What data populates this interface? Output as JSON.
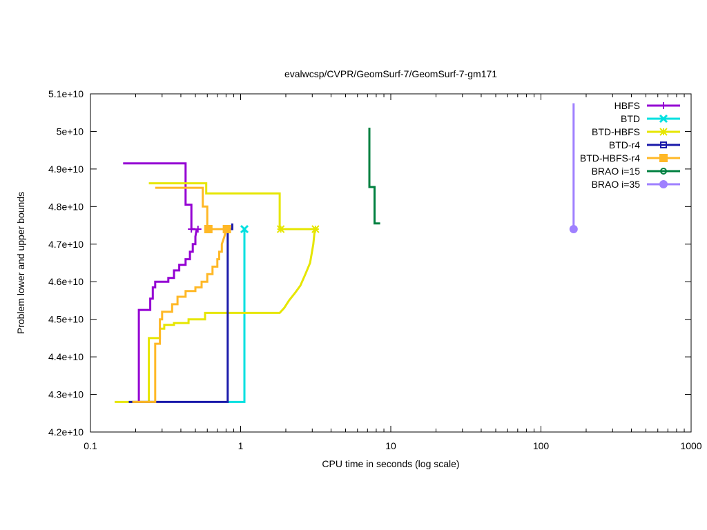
{
  "chart_data": {
    "type": "line",
    "title": "evalwcsp/CVPR/GeomSurf-7/GeomSurf-7-gm171",
    "xlabel": "CPU time in seconds (log scale)",
    "ylabel": "Problem lower and upper bounds",
    "xscale": "log",
    "xlim": [
      0.1,
      1000
    ],
    "ylim": [
      42000000000.0,
      51000000000.0
    ],
    "x_ticks": [
      0.1,
      1,
      10,
      100,
      1000
    ],
    "x_tick_labels": [
      "0.1",
      "1",
      "10",
      "100",
      "1000"
    ],
    "y_ticks": [
      42000000000.0,
      43000000000.0,
      44000000000.0,
      45000000000.0,
      46000000000.0,
      47000000000.0,
      48000000000.0,
      49000000000.0,
      50000000000.0,
      51000000000.0
    ],
    "y_tick_labels": [
      "4.2e+10",
      "4.3e+10",
      "4.4e+10",
      "4.5e+10",
      "4.6e+10",
      "4.7e+10",
      "4.8e+10",
      "4.9e+10",
      "5e+10",
      "5.1e+10"
    ],
    "legend_position": "top-right",
    "grid": false,
    "series": [
      {
        "name": "HBFS",
        "color": "#9400d3",
        "marker": "plus",
        "upper": [
          [
            0.165,
            49150000000.0
          ],
          [
            0.43,
            49150000000.0
          ],
          [
            0.43,
            48050000000.0
          ],
          [
            0.47,
            48050000000.0
          ],
          [
            0.47,
            47400000000.0
          ],
          [
            0.5,
            47400000000.0
          ]
        ],
        "lower": [
          [
            0.21,
            42800000000.0
          ],
          [
            0.21,
            45250000000.0
          ],
          [
            0.25,
            45250000000.0
          ],
          [
            0.25,
            45550000000.0
          ],
          [
            0.26,
            45550000000.0
          ],
          [
            0.26,
            45850000000.0
          ],
          [
            0.27,
            45850000000.0
          ],
          [
            0.27,
            46000000000.0
          ],
          [
            0.33,
            46000000000.0
          ],
          [
            0.33,
            46100000000.0
          ],
          [
            0.36,
            46100000000.0
          ],
          [
            0.36,
            46300000000.0
          ],
          [
            0.39,
            46300000000.0
          ],
          [
            0.39,
            46450000000.0
          ],
          [
            0.43,
            46450000000.0
          ],
          [
            0.43,
            46600000000.0
          ],
          [
            0.46,
            46600000000.0
          ],
          [
            0.46,
            46800000000.0
          ],
          [
            0.48,
            46800000000.0
          ],
          [
            0.48,
            47000000000.0
          ],
          [
            0.5,
            47000000000.0
          ],
          [
            0.5,
            47200000000.0
          ],
          [
            0.51,
            47400000000.0
          ]
        ],
        "markers": [
          [
            0.47,
            47400000000.0
          ],
          [
            0.52,
            47400000000.0
          ]
        ]
      },
      {
        "name": "BTD",
        "color": "#00e0e0",
        "marker": "cross",
        "upper": [
          [
            1.06,
            47400000000.0
          ]
        ],
        "lower": [
          [
            0.82,
            42800000000.0
          ],
          [
            1.06,
            42800000000.0
          ],
          [
            1.06,
            47400000000.0
          ]
        ],
        "markers": [
          [
            1.06,
            47400000000.0
          ]
        ]
      },
      {
        "name": "BTD-HBFS",
        "color": "#e6e600",
        "marker": "star",
        "upper": [
          [
            0.245,
            48620000000.0
          ],
          [
            0.59,
            48620000000.0
          ],
          [
            0.59,
            48350000000.0
          ],
          [
            1.82,
            48350000000.0
          ],
          [
            1.82,
            47400000000.0
          ],
          [
            3.1,
            47400000000.0
          ]
        ],
        "lower": [
          [
            0.145,
            42800000000.0
          ],
          [
            0.245,
            42800000000.0
          ],
          [
            0.245,
            44500000000.0
          ],
          [
            0.29,
            44500000000.0
          ],
          [
            0.29,
            44750000000.0
          ],
          [
            0.31,
            44750000000.0
          ],
          [
            0.31,
            44850000000.0
          ],
          [
            0.36,
            44850000000.0
          ],
          [
            0.36,
            44900000000.0
          ],
          [
            0.45,
            44900000000.0
          ],
          [
            0.45,
            45000000000.0
          ],
          [
            0.58,
            45000000000.0
          ],
          [
            0.58,
            45170000000.0
          ],
          [
            1.82,
            45170000000.0
          ],
          [
            1.95,
            45300000000.0
          ],
          [
            2.1,
            45500000000.0
          ],
          [
            2.3,
            45700000000.0
          ],
          [
            2.5,
            45900000000.0
          ],
          [
            2.7,
            46200000000.0
          ],
          [
            2.9,
            46500000000.0
          ],
          [
            3.05,
            47000000000.0
          ],
          [
            3.12,
            47400000000.0
          ]
        ],
        "markers": [
          [
            1.85,
            47400000000.0
          ],
          [
            3.15,
            47400000000.0
          ]
        ]
      },
      {
        "name": "BTD-r4",
        "color": "#1a1aaa",
        "marker": "square",
        "upper": [
          [
            0.82,
            47400000000.0
          ],
          [
            0.88,
            47400000000.0
          ],
          [
            0.88,
            47550000000.0
          ]
        ],
        "lower": [
          [
            0.18,
            42800000000.0
          ],
          [
            0.82,
            42800000000.0
          ],
          [
            0.82,
            47400000000.0
          ]
        ],
        "markers": []
      },
      {
        "name": "BTD-HBFS-r4",
        "color": "#ffb826",
        "marker": "filled-square",
        "upper": [
          [
            0.27,
            48500000000.0
          ],
          [
            0.56,
            48500000000.0
          ],
          [
            0.56,
            48000000000.0
          ],
          [
            0.6,
            48000000000.0
          ],
          [
            0.6,
            47400000000.0
          ],
          [
            0.8,
            47400000000.0
          ]
        ],
        "lower": [
          [
            0.19,
            42800000000.0
          ],
          [
            0.27,
            42800000000.0
          ],
          [
            0.27,
            44350000000.0
          ],
          [
            0.29,
            44350000000.0
          ],
          [
            0.29,
            45000000000.0
          ],
          [
            0.3,
            45000000000.0
          ],
          [
            0.3,
            45200000000.0
          ],
          [
            0.35,
            45200000000.0
          ],
          [
            0.35,
            45400000000.0
          ],
          [
            0.38,
            45400000000.0
          ],
          [
            0.38,
            45600000000.0
          ],
          [
            0.43,
            45600000000.0
          ],
          [
            0.43,
            45750000000.0
          ],
          [
            0.5,
            45750000000.0
          ],
          [
            0.5,
            45850000000.0
          ],
          [
            0.55,
            45850000000.0
          ],
          [
            0.55,
            46000000000.0
          ],
          [
            0.6,
            46000000000.0
          ],
          [
            0.6,
            46200000000.0
          ],
          [
            0.65,
            46200000000.0
          ],
          [
            0.65,
            46400000000.0
          ],
          [
            0.7,
            46400000000.0
          ],
          [
            0.7,
            46600000000.0
          ],
          [
            0.72,
            46600000000.0
          ],
          [
            0.72,
            46800000000.0
          ],
          [
            0.75,
            46800000000.0
          ],
          [
            0.75,
            47000000000.0
          ],
          [
            0.78,
            47200000000.0
          ],
          [
            0.8,
            47400000000.0
          ]
        ],
        "markers": [
          [
            0.61,
            47400000000.0
          ],
          [
            0.81,
            47400000000.0
          ]
        ]
      },
      {
        "name": "BRAO i=15",
        "color": "#008040",
        "marker": "circle",
        "upper": [
          [
            7.2,
            50100000000.0
          ],
          [
            7.2,
            48520000000.0
          ],
          [
            7.8,
            48520000000.0
          ],
          [
            7.8,
            47550000000.0
          ],
          [
            8.5,
            47550000000.0
          ]
        ],
        "lower": [],
        "markers": []
      },
      {
        "name": "BRAO i=35",
        "color": "#9f80ff",
        "marker": "filled-circle",
        "upper": [
          [
            165,
            50750000000.0
          ],
          [
            165,
            47400000000.0
          ]
        ],
        "lower": [],
        "markers": [
          [
            165,
            47400000000.0
          ]
        ]
      }
    ]
  }
}
